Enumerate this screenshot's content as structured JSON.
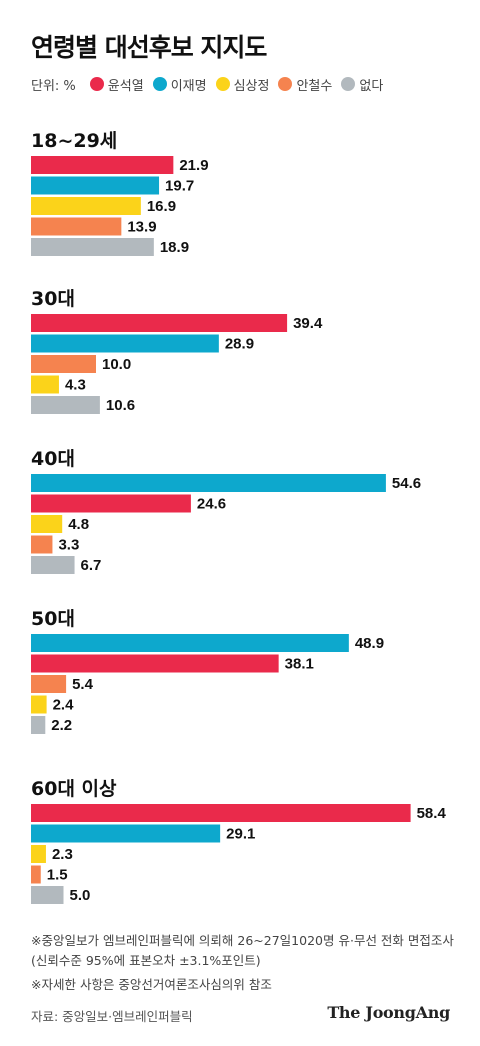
{
  "title": "연령별 대선후보 지지도",
  "legend": {
    "unit": "단위: %",
    "items": [
      {
        "name": "윤석열",
        "color": "#ea2a4b"
      },
      {
        "name": "이재명",
        "color": "#0da8cd"
      },
      {
        "name": "심상정",
        "color": "#fbd31a"
      },
      {
        "name": "안철수",
        "color": "#f5834f"
      },
      {
        "name": "없다",
        "color": "#b2b9be"
      }
    ]
  },
  "chart_data": {
    "type": "bar",
    "orientation": "horizontal",
    "unit": "%",
    "xlim": [
      0,
      70
    ],
    "grid": false,
    "groups": [
      {
        "label": "18~29세",
        "bars": [
          {
            "series": "윤석열",
            "value": 21.9
          },
          {
            "series": "이재명",
            "value": 19.7
          },
          {
            "series": "심상정",
            "value": 16.9
          },
          {
            "series": "안철수",
            "value": 13.9
          },
          {
            "series": "없다",
            "value": 18.9
          }
        ]
      },
      {
        "label": "30대",
        "bars": [
          {
            "series": "윤석열",
            "value": 39.4
          },
          {
            "series": "이재명",
            "value": 28.9
          },
          {
            "series": "안철수",
            "value": 10.0
          },
          {
            "series": "심상정",
            "value": 4.3
          },
          {
            "series": "없다",
            "value": 10.6
          }
        ]
      },
      {
        "label": "40대",
        "bars": [
          {
            "series": "이재명",
            "value": 54.6
          },
          {
            "series": "윤석열",
            "value": 24.6
          },
          {
            "series": "심상정",
            "value": 4.8
          },
          {
            "series": "안철수",
            "value": 3.3
          },
          {
            "series": "없다",
            "value": 6.7
          }
        ]
      },
      {
        "label": "50대",
        "bars": [
          {
            "series": "이재명",
            "value": 48.9
          },
          {
            "series": "윤석열",
            "value": 38.1
          },
          {
            "series": "안철수",
            "value": 5.4
          },
          {
            "series": "심상정",
            "value": 2.4
          },
          {
            "series": "없다",
            "value": 2.2
          }
        ]
      },
      {
        "label": "60대 이상",
        "bars": [
          {
            "series": "윤석열",
            "value": 58.4
          },
          {
            "series": "이재명",
            "value": 29.1
          },
          {
            "series": "심상정",
            "value": 2.3
          },
          {
            "series": "안철수",
            "value": 1.5
          },
          {
            "series": "없다",
            "value": 5.0
          }
        ]
      }
    ]
  },
  "notes": [
    "※중앙일보가 엠브레인퍼블릭에 의뢰해 26~27일1020명 유·무선 전화 면접조사(신뢰수준 95%에 표본오차 ±3.1%포인트)",
    "※자세한 사항은 중앙선거여론조사심의위 참조"
  ],
  "source": "자료: 중앙일보·엠브레인퍼블릭",
  "brand": "The JoongAng"
}
